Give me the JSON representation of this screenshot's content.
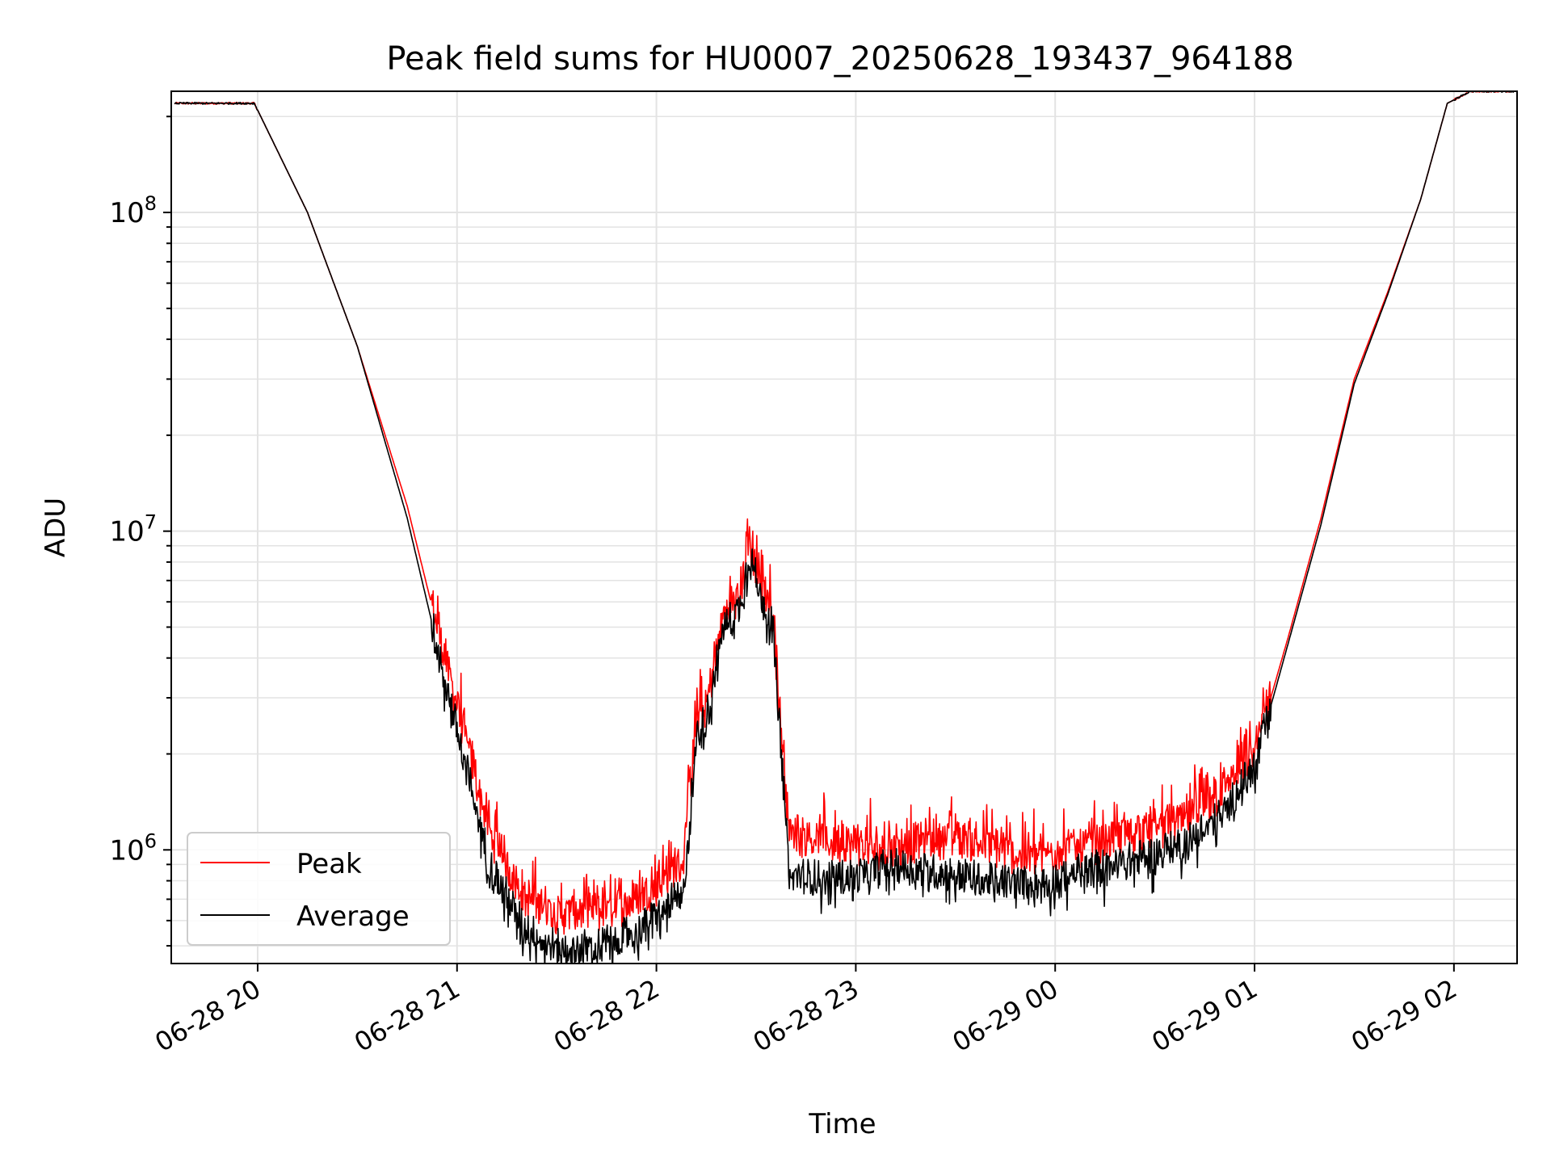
{
  "chart_data": {
    "type": "line",
    "title": "Peak field sums for HU0007_20250628_193437_964188",
    "xlabel": "Time",
    "ylabel": "ADU",
    "yscale": "log",
    "ylim": [
      440000,
      240000000
    ],
    "xlim": [
      "2025-06-28 19:34",
      "2025-06-29 02:19"
    ],
    "x_tick_labels": [
      "06-28 20",
      "06-28 21",
      "06-28 22",
      "06-28 23",
      "06-29 00",
      "06-29 01",
      "06-29 02"
    ],
    "y_tick_labels": [
      {
        "base": "10",
        "exp": "6"
      },
      {
        "base": "10",
        "exp": "7"
      },
      {
        "base": "10",
        "exp": "8"
      }
    ],
    "grid": true,
    "legend_position": "lower-left",
    "series": [
      {
        "name": "Peak",
        "color": "#ff0000",
        "x": [
          "2025-06-28 19:35",
          "2025-06-28 19:59",
          "2025-06-28 20:15",
          "2025-06-28 20:30",
          "2025-06-28 20:45",
          "2025-06-28 21:00",
          "2025-06-28 21:10",
          "2025-06-28 21:20",
          "2025-06-28 21:30",
          "2025-06-28 21:40",
          "2025-06-28 21:50",
          "2025-06-28 22:00",
          "2025-06-28 22:05",
          "2025-06-28 22:08",
          "2025-06-28 22:12",
          "2025-06-28 22:15",
          "2025-06-28 22:20",
          "2025-06-28 22:25",
          "2025-06-28 22:28",
          "2025-06-28 22:32",
          "2025-06-28 22:35",
          "2025-06-28 22:40",
          "2025-06-28 22:50",
          "2025-06-28 23:00",
          "2025-06-28 23:10",
          "2025-06-28 23:20",
          "2025-06-28 23:30",
          "2025-06-28 23:40",
          "2025-06-28 23:50",
          "2025-06-29 00:00",
          "2025-06-29 00:10",
          "2025-06-29 00:20",
          "2025-06-29 00:30",
          "2025-06-29 00:40",
          "2025-06-29 00:50",
          "2025-06-29 01:00",
          "2025-06-29 01:10",
          "2025-06-29 01:20",
          "2025-06-29 01:30",
          "2025-06-29 01:40",
          "2025-06-29 01:50",
          "2025-06-29 01:58",
          "2025-06-29 02:05",
          "2025-06-29 02:18"
        ],
        "values": [
          220000000,
          220000000,
          100000000,
          38000000,
          12000000,
          2800000,
          1100000,
          700000,
          620000,
          620000,
          660000,
          760000,
          860000,
          900000,
          2500000,
          2800000,
          5200000,
          6200000,
          9000000,
          6400000,
          5400000,
          1100000,
          1050000,
          1000000,
          980000,
          1050000,
          1080000,
          1020000,
          930000,
          960000,
          1020000,
          1080000,
          1140000,
          1240000,
          1480000,
          2000000,
          4600000,
          11000000,
          30000000,
          56000000,
          110000000,
          220000000,
          240000000,
          240000000
        ]
      },
      {
        "name": "Average",
        "color": "#000000",
        "x": [
          "2025-06-28 19:35",
          "2025-06-28 19:59",
          "2025-06-28 20:15",
          "2025-06-28 20:30",
          "2025-06-28 20:45",
          "2025-06-28 21:00",
          "2025-06-28 21:10",
          "2025-06-28 21:20",
          "2025-06-28 21:30",
          "2025-06-28 21:40",
          "2025-06-28 21:50",
          "2025-06-28 22:00",
          "2025-06-28 22:05",
          "2025-06-28 22:08",
          "2025-06-28 22:12",
          "2025-06-28 22:15",
          "2025-06-28 22:20",
          "2025-06-28 22:25",
          "2025-06-28 22:28",
          "2025-06-28 22:32",
          "2025-06-28 22:35",
          "2025-06-28 22:40",
          "2025-06-28 22:50",
          "2025-06-28 23:00",
          "2025-06-28 23:10",
          "2025-06-28 23:20",
          "2025-06-28 23:30",
          "2025-06-28 23:40",
          "2025-06-28 23:50",
          "2025-06-29 00:00",
          "2025-06-29 00:10",
          "2025-06-29 00:20",
          "2025-06-29 00:30",
          "2025-06-29 00:40",
          "2025-06-29 00:50",
          "2025-06-29 01:00",
          "2025-06-29 01:10",
          "2025-06-29 01:20",
          "2025-06-29 01:30",
          "2025-06-29 01:40",
          "2025-06-29 01:50",
          "2025-06-29 01:58",
          "2025-06-29 02:05",
          "2025-06-29 02:18"
        ],
        "values": [
          220000000,
          220000000,
          100000000,
          38000000,
          11000000,
          2400000,
          900000,
          580000,
          500000,
          500000,
          540000,
          620000,
          700000,
          700000,
          2300000,
          2600000,
          5000000,
          5800000,
          8500000,
          6100000,
          5100000,
          850000,
          820000,
          830000,
          900000,
          870000,
          850000,
          810000,
          790000,
          820000,
          880000,
          920000,
          980000,
          1080000,
          1300000,
          1850000,
          4400000,
          10500000,
          29000000,
          55000000,
          110000000,
          220000000,
          240000000,
          240000000
        ]
      }
    ]
  }
}
